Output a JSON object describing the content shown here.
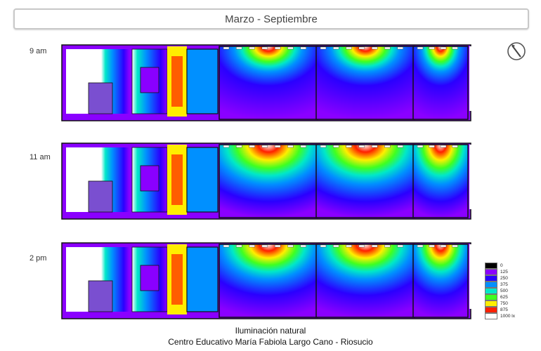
{
  "header": {
    "title": "Marzo - Septiembre"
  },
  "panels": [
    {
      "time": "9 am",
      "intensity": 0.55
    },
    {
      "time": "11 am",
      "intensity": 0.85
    },
    {
      "time": "2 pm",
      "intensity": 0.75
    }
  ],
  "legend": {
    "items": [
      {
        "label": "0",
        "color": "#000000"
      },
      {
        "label": "125",
        "color": "#8a00ff"
      },
      {
        "label": "250",
        "color": "#2a00ff"
      },
      {
        "label": "375",
        "color": "#0090ff"
      },
      {
        "label": "500",
        "color": "#00e8c8"
      },
      {
        "label": "625",
        "color": "#40ff20"
      },
      {
        "label": "750",
        "color": "#ffee00"
      },
      {
        "label": "875",
        "color": "#ff2000"
      },
      {
        "label": "1000 lx",
        "color": "#ffffff"
      }
    ]
  },
  "caption": {
    "line1": "Iluminación natural",
    "line2": "Centro Educativo María Fabiola Largo Cano - Riosucio"
  },
  "icons": {
    "compass": "north-compass-icon"
  }
}
